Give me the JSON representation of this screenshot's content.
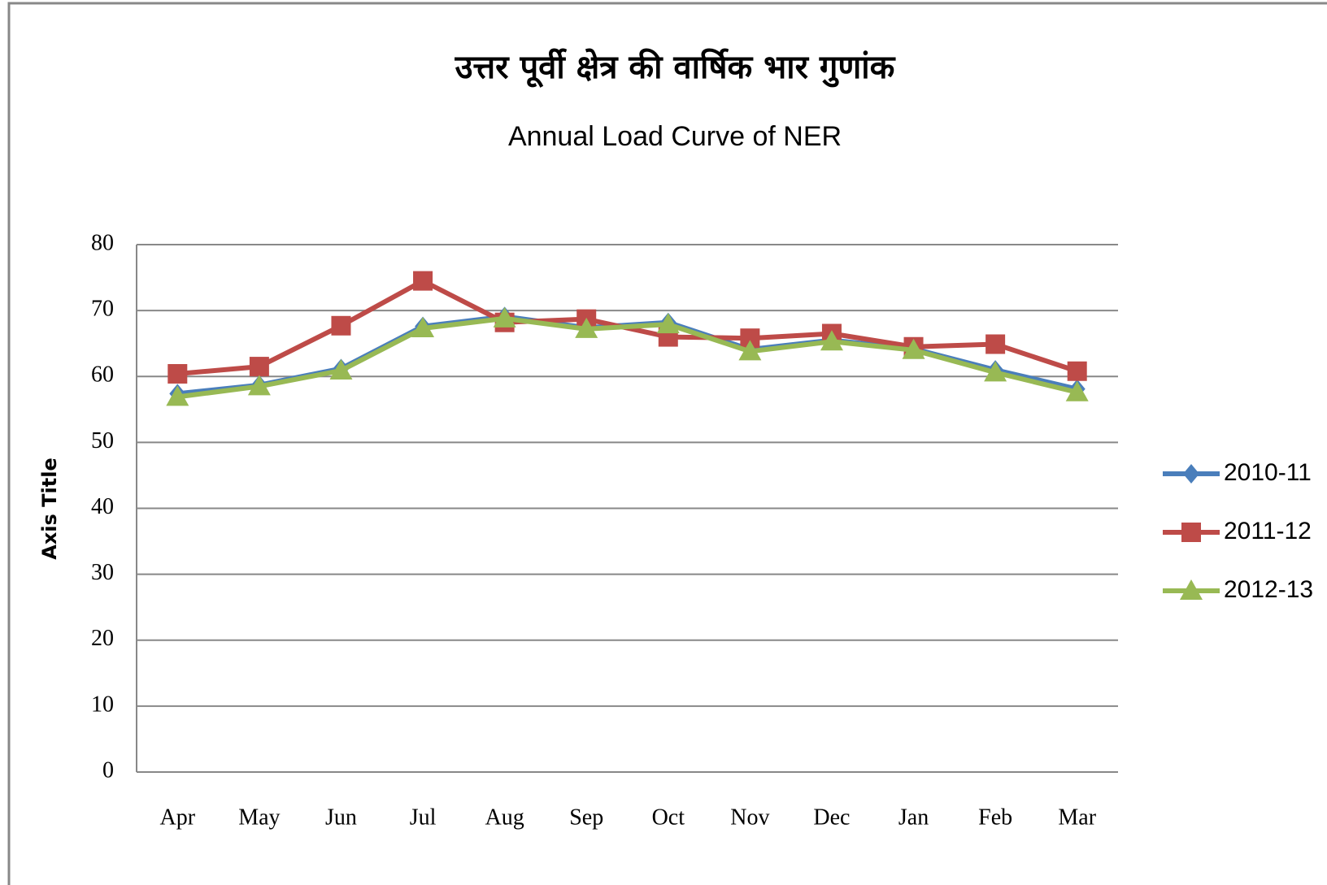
{
  "chart_data": {
    "type": "line",
    "title": "उत्तर पूर्वी क्षेत्र की वार्षिक भार गुणांक",
    "subtitle": "Annual Load Curve of NER",
    "y_axis_label": "Axis Title",
    "categories": [
      "Apr",
      "May",
      "Jun",
      "Jul",
      "Aug",
      "Sep",
      "Oct",
      "Nov",
      "Dec",
      "Jan",
      "Feb",
      "Mar"
    ],
    "series": [
      {
        "name": "2010-11",
        "color": "#4a7ebb",
        "marker": "diamond",
        "values": [
          57.4,
          58.7,
          61.2,
          67.6,
          69.1,
          67.4,
          68.2,
          64.1,
          65.5,
          64.2,
          61.0,
          58.1
        ]
      },
      {
        "name": "2011-12",
        "color": "#be4b48",
        "marker": "square",
        "values": [
          60.4,
          61.5,
          67.7,
          74.5,
          68.2,
          68.7,
          66.0,
          65.8,
          66.5,
          64.5,
          64.9,
          60.8
        ]
      },
      {
        "name": "2012-13",
        "color": "#98b954",
        "marker": "triangle",
        "values": [
          56.9,
          58.5,
          60.9,
          67.3,
          68.8,
          67.2,
          67.9,
          63.8,
          65.3,
          64.0,
          60.6,
          57.6
        ]
      }
    ],
    "ylim": [
      0,
      80
    ],
    "yticks": [
      0,
      10,
      20,
      30,
      40,
      50,
      60,
      70,
      80
    ],
    "grid": true,
    "legend": "right"
  }
}
